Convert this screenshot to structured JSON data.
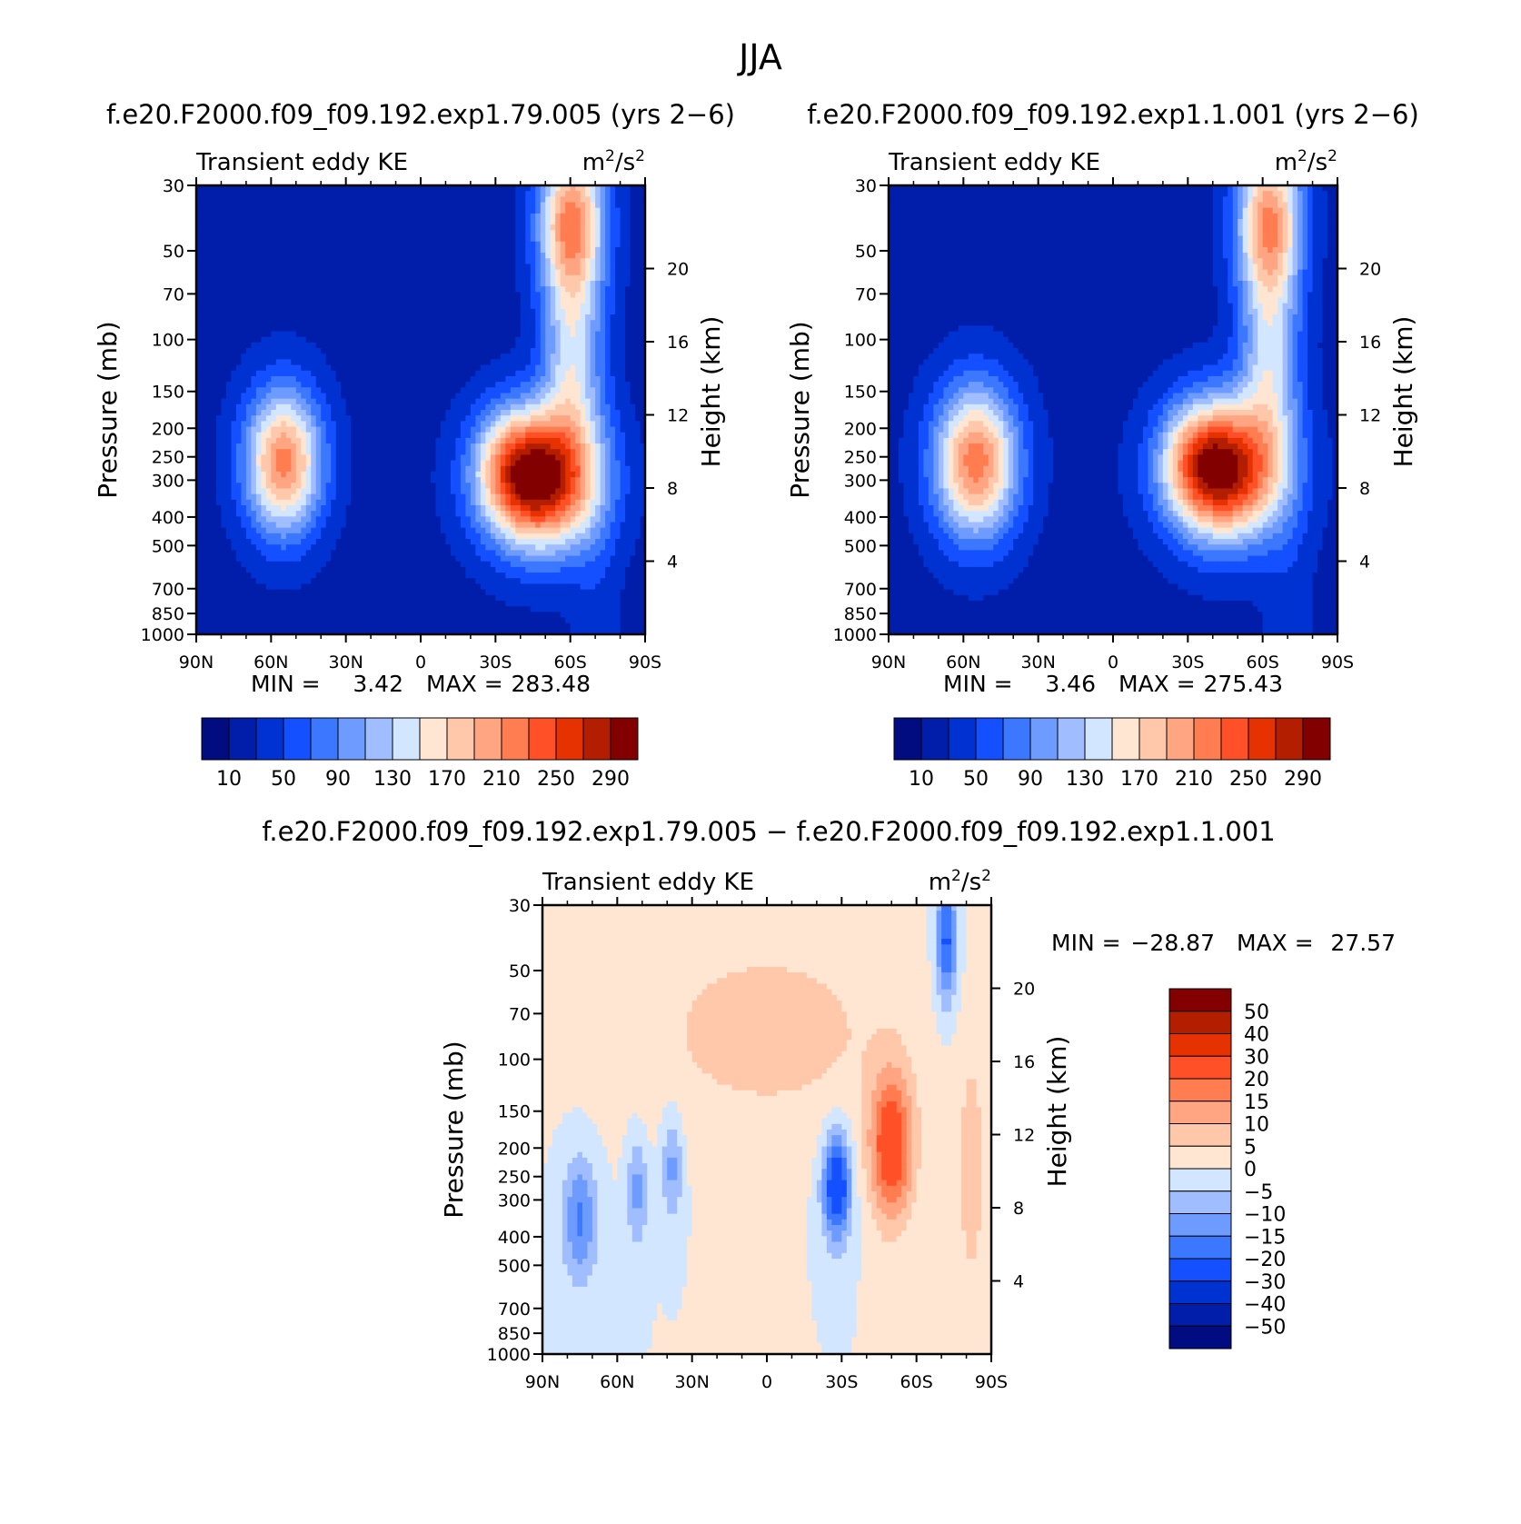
{
  "title": "JJA",
  "colors": {
    "cool": [
      "#000c80",
      "#001eaa",
      "#0032d2",
      "#1450ff",
      "#3c78ff",
      "#6e9bff",
      "#a0beff",
      "#d2e6ff"
    ],
    "warm": [
      "#ffe6d2",
      "#ffc8aa",
      "#ffa582",
      "#ff7d50",
      "#ff5028",
      "#e63200",
      "#b41e00",
      "#820000"
    ]
  },
  "chart_data": [
    {
      "type": "heatmap",
      "title": "f.e20.F2000.f09_f09.192.exp1.79.005 (yrs 2−6)",
      "subtitle_left": "Transient eddy KE",
      "units_base": "m",
      "units_exp": "2",
      "units_sep": "/s",
      "units_exp2": "2",
      "xlabel": "",
      "ylabel": "Pressure (mb)",
      "y2label": "Height (km)",
      "x_ticks": [
        "90N",
        "60N",
        "30N",
        "0",
        "30S",
        "60S",
        "90S"
      ],
      "y_ticks": [
        "30",
        "50",
        "70",
        "100",
        "150",
        "200",
        "250",
        "300",
        "400",
        "500",
        "700",
        "850",
        "1000"
      ],
      "y2_ticks": [
        "20",
        "16",
        "12",
        "8",
        "4"
      ],
      "min_label": "MIN =",
      "min_value": "3.42",
      "max_label": "MAX =",
      "max_value": "283.48",
      "colorbar_labels": [
        "10",
        "50",
        "90",
        "130",
        "170",
        "210",
        "250",
        "290"
      ],
      "blobs": [
        {
          "lat": -48,
          "p": 300,
          "amp": 275,
          "sx": 16,
          "sy": 0.38
        },
        {
          "lat": -35,
          "p": 260,
          "amp": 60,
          "sx": 10,
          "sy": 0.3
        },
        {
          "lat": 55,
          "p": 260,
          "amp": 195,
          "sx": 11,
          "sy": 0.4
        },
        {
          "lat": -60,
          "p": 40,
          "amp": 190,
          "sx": 9,
          "sy": 0.45
        },
        {
          "lat": -60,
          "p": 120,
          "amp": 100,
          "sx": 8,
          "sy": 0.5
        }
      ]
    },
    {
      "type": "heatmap",
      "title": "f.e20.F2000.f09_f09.192.exp1.1.001 (yrs 2−6)",
      "subtitle_left": "Transient eddy KE",
      "units_base": "m",
      "units_exp": "2",
      "units_sep": "/s",
      "units_exp2": "2",
      "xlabel": "",
      "ylabel": "Pressure (mb)",
      "y2label": "Height (km)",
      "x_ticks": [
        "90N",
        "60N",
        "30N",
        "0",
        "30S",
        "60S",
        "90S"
      ],
      "y_ticks": [
        "30",
        "50",
        "70",
        "100",
        "150",
        "200",
        "250",
        "300",
        "400",
        "500",
        "700",
        "850",
        "1000"
      ],
      "y2_ticks": [
        "20",
        "16",
        "12",
        "8",
        "4"
      ],
      "min_label": "MIN =",
      "min_value": "3.46",
      "max_label": "MAX =",
      "max_value": "275.43",
      "colorbar_labels": [
        "10",
        "50",
        "90",
        "130",
        "170",
        "210",
        "250",
        "290"
      ],
      "blobs": [
        {
          "lat": -45,
          "p": 280,
          "amp": 265,
          "sx": 16,
          "sy": 0.38
        },
        {
          "lat": -33,
          "p": 250,
          "amp": 60,
          "sx": 10,
          "sy": 0.3
        },
        {
          "lat": 55,
          "p": 260,
          "amp": 200,
          "sx": 12,
          "sy": 0.42
        },
        {
          "lat": -62,
          "p": 40,
          "amp": 180,
          "sx": 9,
          "sy": 0.45
        },
        {
          "lat": -62,
          "p": 120,
          "amp": 95,
          "sx": 8,
          "sy": 0.5
        }
      ]
    },
    {
      "type": "heatmap",
      "title": "f.e20.F2000.f09_f09.192.exp1.79.005 − f.e20.F2000.f09_f09.192.exp1.1.001",
      "subtitle_left": "Transient eddy KE",
      "units_base": "m",
      "units_exp": "2",
      "units_sep": "/s",
      "units_exp2": "2",
      "xlabel": "",
      "ylabel": "Pressure (mb)",
      "y2label": "Height (km)",
      "x_ticks": [
        "90N",
        "60N",
        "30N",
        "0",
        "30S",
        "60S",
        "90S"
      ],
      "y_ticks": [
        "30",
        "50",
        "70",
        "100",
        "150",
        "200",
        "250",
        "300",
        "400",
        "500",
        "700",
        "850",
        "1000"
      ],
      "y2_ticks": [
        "20",
        "16",
        "12",
        "8",
        "4"
      ],
      "min_label": "MIN =",
      "min_value": "−28.87",
      "max_label": "MAX =",
      "max_value": "27.57",
      "colorbar_labels": [
        "50",
        "40",
        "30",
        "20",
        "15",
        "10",
        "5",
        "0",
        "−5",
        "−10",
        "−15",
        "−20",
        "−30",
        "−40",
        "−50"
      ],
      "blobs": [
        {
          "lat": -50,
          "p": 200,
          "amp": 27,
          "sx": 6,
          "sy": 0.4
        },
        {
          "lat": -28,
          "p": 270,
          "amp": -28,
          "sx": 4,
          "sy": 0.3
        },
        {
          "lat": -72,
          "p": 40,
          "amp": -22,
          "sx": 3,
          "sy": 0.35
        },
        {
          "lat": 75,
          "p": 350,
          "amp": -16,
          "sx": 5,
          "sy": 0.35
        },
        {
          "lat": 52,
          "p": 280,
          "amp": -12,
          "sx": 3,
          "sy": 0.3
        },
        {
          "lat": 38,
          "p": 230,
          "amp": -12,
          "sx": 3,
          "sy": 0.3
        },
        {
          "lat": 0,
          "p": 80,
          "amp": 7,
          "sx": 40,
          "sy": 0.6
        },
        {
          "lat": -82,
          "p": 250,
          "amp": 8,
          "sx": 4,
          "sy": 0.7
        }
      ]
    }
  ]
}
